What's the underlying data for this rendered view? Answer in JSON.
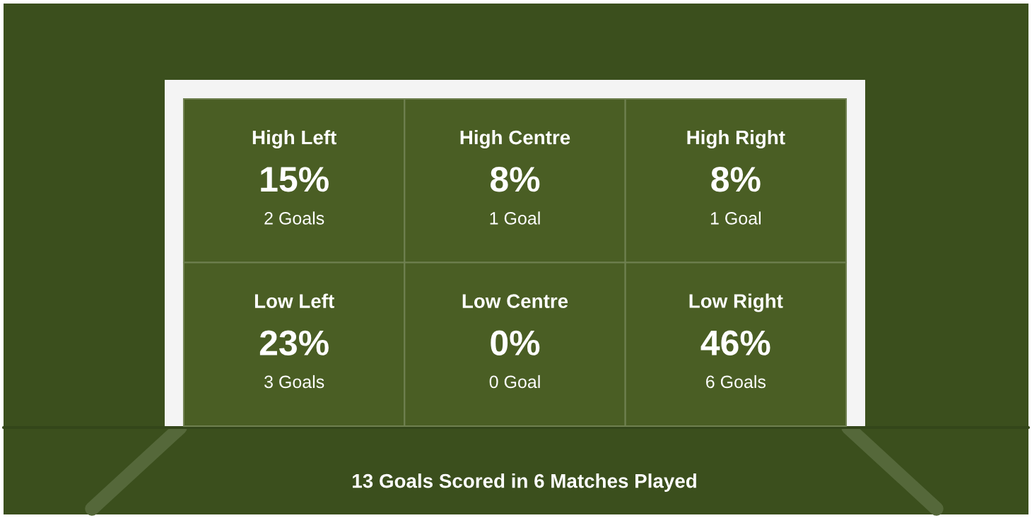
{
  "chart_data": {
    "type": "other",
    "categories": [
      "High Left",
      "High Centre",
      "High Right",
      "Low Left",
      "Low Centre",
      "Low Right"
    ],
    "values": [
      15,
      8,
      8,
      23,
      0,
      46
    ],
    "value_labels": [
      "15%",
      "8%",
      "8%",
      "23%",
      "0%",
      "46%"
    ],
    "color": "#4a5e24",
    "annotations": [
      {
        "text": "2 Goals",
        "x": "High Left"
      },
      {
        "text": "1 Goal",
        "x": "High Centre"
      },
      {
        "text": "1 Goal",
        "x": "High Right"
      },
      {
        "text": "3 Goals",
        "x": "Low Left"
      },
      {
        "text": "0 Goal",
        "x": "Low Centre"
      },
      {
        "text": "6 Goals",
        "x": "Low Right"
      },
      "13 Goals Scored in 6 Matches Played"
    ]
  }
}
